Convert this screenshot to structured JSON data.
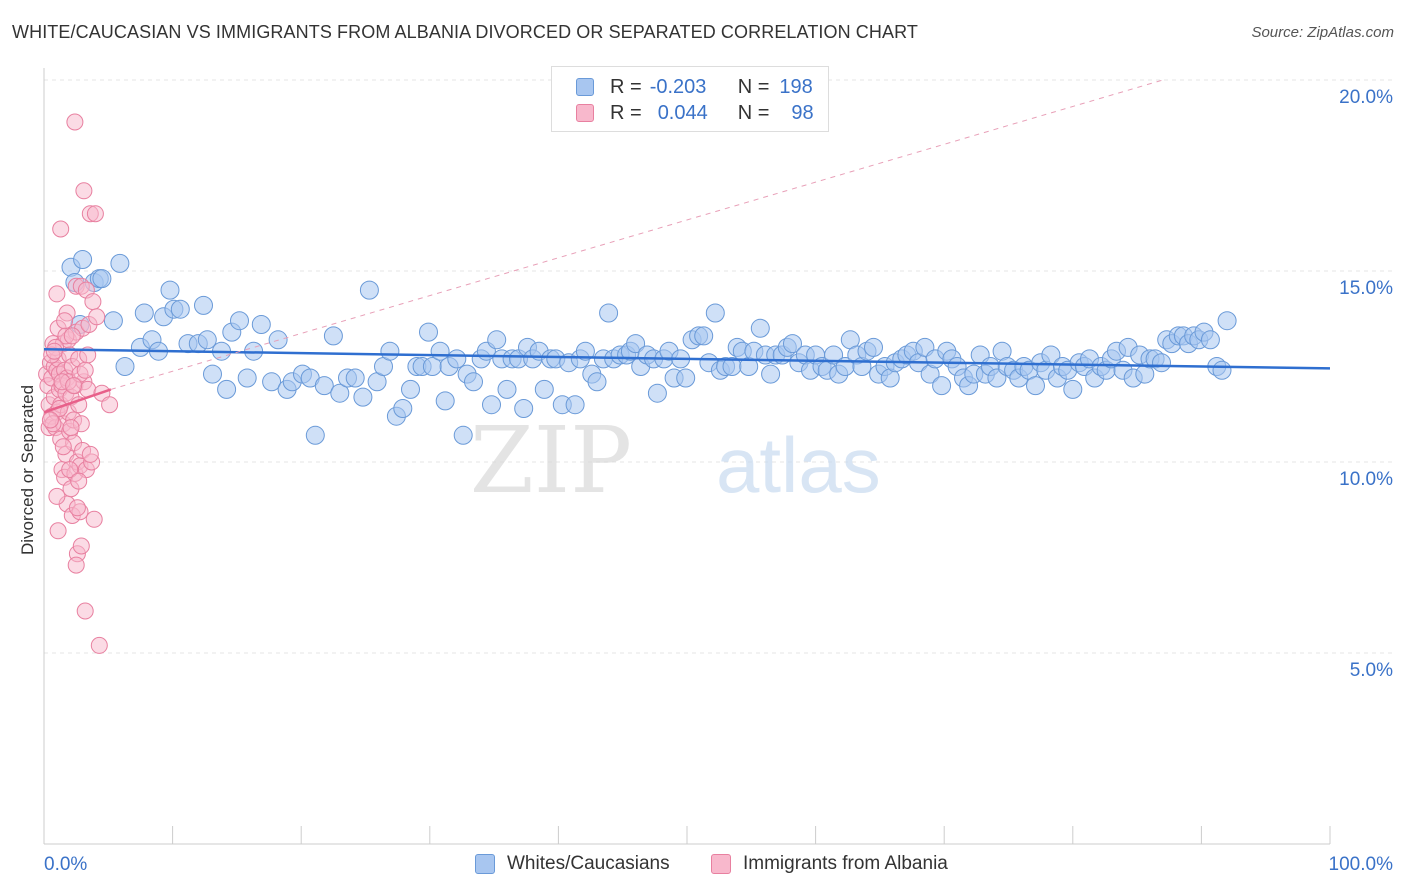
{
  "title": "WHITE/CAUCASIAN VS IMMIGRANTS FROM ALBANIA DIVORCED OR SEPARATED CORRELATION CHART",
  "source": "Source: ZipAtlas.com",
  "watermark": {
    "zip": "ZIP",
    "atlas": "atlas"
  },
  "legend": {
    "r_label": "R =",
    "n_label": "N =",
    "series": [
      {
        "r": "-0.203",
        "n": "198",
        "color": "#a8c6f0",
        "border": "#6a9ad8"
      },
      {
        "r": "0.044",
        "n": "98",
        "color": "#f8b8cc",
        "border": "#e880a0"
      }
    ]
  },
  "bottom_legend": [
    "Whites/Caucasians",
    "Immigrants from Albania"
  ],
  "chart_data": {
    "type": "scatter",
    "title": "WHITE/CAUCASIAN VS IMMIGRANTS FROM ALBANIA DIVORCED OR SEPARATED CORRELATION CHART",
    "xlabel": "",
    "ylabel": "Divorced or Separated",
    "xlim": [
      0,
      100
    ],
    "ylim": [
      0,
      20
    ],
    "x_tick_labels": [
      "0.0%",
      "100.0%"
    ],
    "y_ticks": [
      5,
      10,
      15,
      20
    ],
    "y_tick_labels": [
      "5.0%",
      "10.0%",
      "15.0%",
      "20.0%"
    ],
    "grid": true,
    "legend_position": "top-center",
    "series": [
      {
        "name": "Whites/Caucasians",
        "color": "#6a9ad8",
        "fill": "#a8c6f0",
        "trend": {
          "x": [
            0,
            100
          ],
          "y": [
            12.95,
            12.45
          ],
          "color": "#2f6fd0"
        },
        "points": [
          [
            2.1,
            15.1
          ],
          [
            2.4,
            14.7
          ],
          [
            2.8,
            13.6
          ],
          [
            3.0,
            15.3
          ],
          [
            3.9,
            14.7
          ],
          [
            4.3,
            14.8
          ],
          [
            4.5,
            14.8
          ],
          [
            5.4,
            13.7
          ],
          [
            5.9,
            15.2
          ],
          [
            6.3,
            12.5
          ],
          [
            7.5,
            13.0
          ],
          [
            7.8,
            13.9
          ],
          [
            8.4,
            13.2
          ],
          [
            8.9,
            12.9
          ],
          [
            9.3,
            13.8
          ],
          [
            9.8,
            14.5
          ],
          [
            10.1,
            14.0
          ],
          [
            10.6,
            14.0
          ],
          [
            11.2,
            13.1
          ],
          [
            12.0,
            13.1
          ],
          [
            12.4,
            14.1
          ],
          [
            12.7,
            13.2
          ],
          [
            13.1,
            12.3
          ],
          [
            13.8,
            12.9
          ],
          [
            14.2,
            11.9
          ],
          [
            14.6,
            13.4
          ],
          [
            15.2,
            13.7
          ],
          [
            15.8,
            12.2
          ],
          [
            16.3,
            12.9
          ],
          [
            16.9,
            13.6
          ],
          [
            17.7,
            12.1
          ],
          [
            18.2,
            13.2
          ],
          [
            18.9,
            11.9
          ],
          [
            19.3,
            12.1
          ],
          [
            20.1,
            12.3
          ],
          [
            20.7,
            12.2
          ],
          [
            21.1,
            10.7
          ],
          [
            21.8,
            12.0
          ],
          [
            22.5,
            13.3
          ],
          [
            23.0,
            11.8
          ],
          [
            23.6,
            12.2
          ],
          [
            24.2,
            12.2
          ],
          [
            24.8,
            11.7
          ],
          [
            25.3,
            14.5
          ],
          [
            25.9,
            12.1
          ],
          [
            26.4,
            12.5
          ],
          [
            26.9,
            12.9
          ],
          [
            27.4,
            11.2
          ],
          [
            27.9,
            11.4
          ],
          [
            28.5,
            11.9
          ],
          [
            29.0,
            12.5
          ],
          [
            29.4,
            12.5
          ],
          [
            29.9,
            13.4
          ],
          [
            30.2,
            12.5
          ],
          [
            30.8,
            12.9
          ],
          [
            31.2,
            11.6
          ],
          [
            31.5,
            12.5
          ],
          [
            32.1,
            12.7
          ],
          [
            32.6,
            10.7
          ],
          [
            32.9,
            12.3
          ],
          [
            33.4,
            12.1
          ],
          [
            34.0,
            12.7
          ],
          [
            34.4,
            12.9
          ],
          [
            34.8,
            11.5
          ],
          [
            35.2,
            13.2
          ],
          [
            35.6,
            12.7
          ],
          [
            36.0,
            11.9
          ],
          [
            36.4,
            12.7
          ],
          [
            36.9,
            12.7
          ],
          [
            37.3,
            11.4
          ],
          [
            37.6,
            13.0
          ],
          [
            38.0,
            12.7
          ],
          [
            38.5,
            12.9
          ],
          [
            38.9,
            11.9
          ],
          [
            39.4,
            12.7
          ],
          [
            39.8,
            12.7
          ],
          [
            40.3,
            11.5
          ],
          [
            40.8,
            12.6
          ],
          [
            41.3,
            11.5
          ],
          [
            41.7,
            12.7
          ],
          [
            42.1,
            12.9
          ],
          [
            42.6,
            12.3
          ],
          [
            43.0,
            12.1
          ],
          [
            43.5,
            12.7
          ],
          [
            43.9,
            13.9
          ],
          [
            44.3,
            12.7
          ],
          [
            44.8,
            12.8
          ],
          [
            45.3,
            12.8
          ],
          [
            45.6,
            12.9
          ],
          [
            46.0,
            13.1
          ],
          [
            46.4,
            12.5
          ],
          [
            46.9,
            12.8
          ],
          [
            47.4,
            12.7
          ],
          [
            47.7,
            11.8
          ],
          [
            48.2,
            12.7
          ],
          [
            48.6,
            12.9
          ],
          [
            49.0,
            12.2
          ],
          [
            49.5,
            12.7
          ],
          [
            49.9,
            12.2
          ],
          [
            50.4,
            13.2
          ],
          [
            50.9,
            13.3
          ],
          [
            51.3,
            13.3
          ],
          [
            51.7,
            12.6
          ],
          [
            52.2,
            13.9
          ],
          [
            52.6,
            12.4
          ],
          [
            53.0,
            12.5
          ],
          [
            53.5,
            12.5
          ],
          [
            53.9,
            13.0
          ],
          [
            54.3,
            12.9
          ],
          [
            54.8,
            12.5
          ],
          [
            55.2,
            12.9
          ],
          [
            55.7,
            13.5
          ],
          [
            56.1,
            12.8
          ],
          [
            56.5,
            12.3
          ],
          [
            56.9,
            12.8
          ],
          [
            57.4,
            12.8
          ],
          [
            57.8,
            13.0
          ],
          [
            58.2,
            13.1
          ],
          [
            58.7,
            12.6
          ],
          [
            59.2,
            12.8
          ],
          [
            59.6,
            12.4
          ],
          [
            60.0,
            12.8
          ],
          [
            60.5,
            12.5
          ],
          [
            60.9,
            12.4
          ],
          [
            61.4,
            12.8
          ],
          [
            61.8,
            12.3
          ],
          [
            62.3,
            12.5
          ],
          [
            62.7,
            13.2
          ],
          [
            63.2,
            12.8
          ],
          [
            63.6,
            12.5
          ],
          [
            64.0,
            12.9
          ],
          [
            64.5,
            13.0
          ],
          [
            64.9,
            12.3
          ],
          [
            65.4,
            12.5
          ],
          [
            65.8,
            12.2
          ],
          [
            66.2,
            12.6
          ],
          [
            66.7,
            12.7
          ],
          [
            67.1,
            12.8
          ],
          [
            67.6,
            12.9
          ],
          [
            68.0,
            12.6
          ],
          [
            68.5,
            13.0
          ],
          [
            68.9,
            12.3
          ],
          [
            69.3,
            12.7
          ],
          [
            69.8,
            12.0
          ],
          [
            70.2,
            12.9
          ],
          [
            70.6,
            12.7
          ],
          [
            71.0,
            12.5
          ],
          [
            71.5,
            12.2
          ],
          [
            71.9,
            12.0
          ],
          [
            72.3,
            12.3
          ],
          [
            72.8,
            12.8
          ],
          [
            73.2,
            12.3
          ],
          [
            73.6,
            12.5
          ],
          [
            74.1,
            12.2
          ],
          [
            74.5,
            12.9
          ],
          [
            74.9,
            12.5
          ],
          [
            75.4,
            12.4
          ],
          [
            75.8,
            12.2
          ],
          [
            76.2,
            12.5
          ],
          [
            76.6,
            12.4
          ],
          [
            77.1,
            12.0
          ],
          [
            77.5,
            12.6
          ],
          [
            77.9,
            12.4
          ],
          [
            78.3,
            12.8
          ],
          [
            78.8,
            12.2
          ],
          [
            79.2,
            12.5
          ],
          [
            79.6,
            12.4
          ],
          [
            80.0,
            11.9
          ],
          [
            80.5,
            12.6
          ],
          [
            80.9,
            12.5
          ],
          [
            81.3,
            12.7
          ],
          [
            81.7,
            12.2
          ],
          [
            82.2,
            12.5
          ],
          [
            82.6,
            12.4
          ],
          [
            83.0,
            12.7
          ],
          [
            83.4,
            12.9
          ],
          [
            83.9,
            12.4
          ],
          [
            84.3,
            13.0
          ],
          [
            84.7,
            12.2
          ],
          [
            85.2,
            12.8
          ],
          [
            85.6,
            12.3
          ],
          [
            86.0,
            12.7
          ],
          [
            86.4,
            12.7
          ],
          [
            86.9,
            12.6
          ],
          [
            87.3,
            13.2
          ],
          [
            87.7,
            13.1
          ],
          [
            88.2,
            13.3
          ],
          [
            88.6,
            13.3
          ],
          [
            89.0,
            13.1
          ],
          [
            89.4,
            13.3
          ],
          [
            89.8,
            13.2
          ],
          [
            90.2,
            13.4
          ],
          [
            90.7,
            13.2
          ],
          [
            91.2,
            12.5
          ],
          [
            91.6,
            12.4
          ],
          [
            92.0,
            13.7
          ]
        ]
      },
      {
        "name": "Immigrants from Albania",
        "color": "#e880a0",
        "fill": "#f8b8cc",
        "trend": {
          "x": [
            0,
            5.2
          ],
          "y": [
            11.3,
            11.9
          ],
          "color": "#e8608a"
        },
        "trend_ext": {
          "x": [
            5.2,
            87
          ],
          "y": [
            11.9,
            20
          ]
        },
        "points": [
          [
            0.2,
            12.3
          ],
          [
            0.3,
            12.0
          ],
          [
            0.4,
            11.5
          ],
          [
            0.4,
            10.9
          ],
          [
            0.5,
            12.6
          ],
          [
            0.6,
            11.2
          ],
          [
            0.6,
            12.2
          ],
          [
            0.7,
            13.1
          ],
          [
            0.8,
            11.7
          ],
          [
            0.8,
            12.5
          ],
          [
            0.9,
            10.9
          ],
          [
            1.0,
            12.4
          ],
          [
            1.0,
            11.3
          ],
          [
            1.1,
            13.5
          ],
          [
            1.1,
            12.7
          ],
          [
            1.2,
            11.9
          ],
          [
            1.2,
            12.3
          ],
          [
            1.3,
            10.6
          ],
          [
            1.3,
            11.5
          ],
          [
            1.4,
            9.8
          ],
          [
            1.4,
            12.0
          ],
          [
            1.5,
            13.1
          ],
          [
            1.5,
            11.0
          ],
          [
            1.6,
            12.4
          ],
          [
            1.6,
            9.6
          ],
          [
            1.7,
            11.8
          ],
          [
            1.7,
            10.2
          ],
          [
            1.8,
            12.2
          ],
          [
            1.8,
            8.9
          ],
          [
            1.9,
            11.3
          ],
          [
            1.9,
            13.2
          ],
          [
            2.0,
            12.8
          ],
          [
            2.0,
            10.8
          ],
          [
            2.1,
            9.3
          ],
          [
            2.1,
            11.7
          ],
          [
            2.2,
            12.5
          ],
          [
            2.2,
            8.6
          ],
          [
            2.3,
            10.5
          ],
          [
            2.3,
            11.1
          ],
          [
            2.4,
            12.0
          ],
          [
            2.4,
            9.7
          ],
          [
            2.5,
            13.4
          ],
          [
            2.5,
            14.6
          ],
          [
            2.6,
            7.6
          ],
          [
            2.6,
            10.0
          ],
          [
            2.7,
            11.5
          ],
          [
            2.7,
            12.7
          ],
          [
            2.8,
            8.7
          ],
          [
            2.8,
            9.9
          ],
          [
            2.9,
            7.8
          ],
          [
            2.9,
            14.6
          ],
          [
            3.0,
            13.5
          ],
          [
            3.0,
            10.3
          ],
          [
            3.1,
            17.1
          ],
          [
            3.1,
            12.1
          ],
          [
            3.2,
            6.1
          ],
          [
            3.3,
            14.5
          ],
          [
            3.3,
            9.8
          ],
          [
            3.4,
            11.9
          ],
          [
            3.5,
            13.6
          ],
          [
            3.6,
            16.5
          ],
          [
            3.7,
            10.0
          ],
          [
            3.8,
            14.2
          ],
          [
            3.9,
            8.5
          ],
          [
            4.0,
            16.5
          ],
          [
            4.1,
            13.8
          ],
          [
            4.3,
            5.2
          ],
          [
            2.4,
            18.9
          ],
          [
            1.3,
            16.1
          ],
          [
            1.0,
            14.4
          ],
          [
            1.7,
            13.3
          ],
          [
            0.9,
            13.0
          ],
          [
            2.2,
            13.3
          ],
          [
            1.9,
            12.1
          ],
          [
            0.7,
            11.0
          ],
          [
            1.5,
            10.4
          ],
          [
            2.8,
            12.3
          ],
          [
            3.4,
            12.8
          ],
          [
            2.0,
            9.8
          ],
          [
            2.6,
            8.8
          ],
          [
            1.1,
            8.2
          ],
          [
            2.5,
            7.3
          ],
          [
            1.4,
            12.1
          ],
          [
            0.6,
            12.8
          ],
          [
            1.8,
            13.9
          ],
          [
            2.3,
            12.0
          ],
          [
            3.6,
            10.2
          ],
          [
            1.2,
            11.4
          ],
          [
            0.5,
            11.1
          ],
          [
            2.7,
            9.5
          ],
          [
            4.5,
            11.8
          ],
          [
            5.1,
            11.5
          ],
          [
            1.6,
            13.7
          ],
          [
            2.9,
            11.0
          ],
          [
            0.8,
            12.9
          ],
          [
            2.1,
            10.9
          ],
          [
            3.2,
            12.4
          ],
          [
            1.0,
            9.1
          ]
        ]
      }
    ]
  }
}
